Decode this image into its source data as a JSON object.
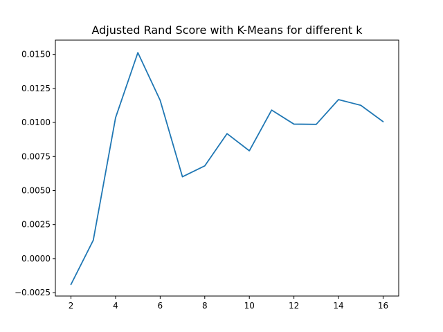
{
  "chart_data": {
    "type": "line",
    "title": "Adjusted Rand Score with K-Means for different k",
    "xlabel": "",
    "ylabel": "",
    "x": [
      2,
      3,
      4,
      5,
      6,
      7,
      8,
      9,
      10,
      11,
      12,
      13,
      14,
      15,
      16
    ],
    "series": [
      {
        "values": [
          -0.0019,
          0.00135,
          0.01035,
          0.01513,
          0.01163,
          0.00601,
          0.00681,
          0.00918,
          0.00792,
          0.01091,
          0.00988,
          0.00986,
          0.01168,
          0.01126,
          0.01006
        ],
        "color": "#1f77b4"
      }
    ],
    "xlim": [
      1.3,
      16.7
    ],
    "ylim": [
      -0.00275,
      0.01605
    ],
    "xticks": [
      2,
      4,
      6,
      8,
      10,
      12,
      14,
      16
    ],
    "xtick_labels": [
      "2",
      "4",
      "6",
      "8",
      "10",
      "12",
      "14",
      "16"
    ],
    "yticks": [
      -0.0025,
      0,
      0.0025,
      0.005,
      0.0075,
      0.01,
      0.0125,
      0.015
    ],
    "ytick_labels": [
      "−0.0025",
      "0.0000",
      "0.0025",
      "0.0050",
      "0.0075",
      "0.0100",
      "0.0125",
      "0.0150"
    ],
    "grid": false,
    "legend": "none"
  }
}
